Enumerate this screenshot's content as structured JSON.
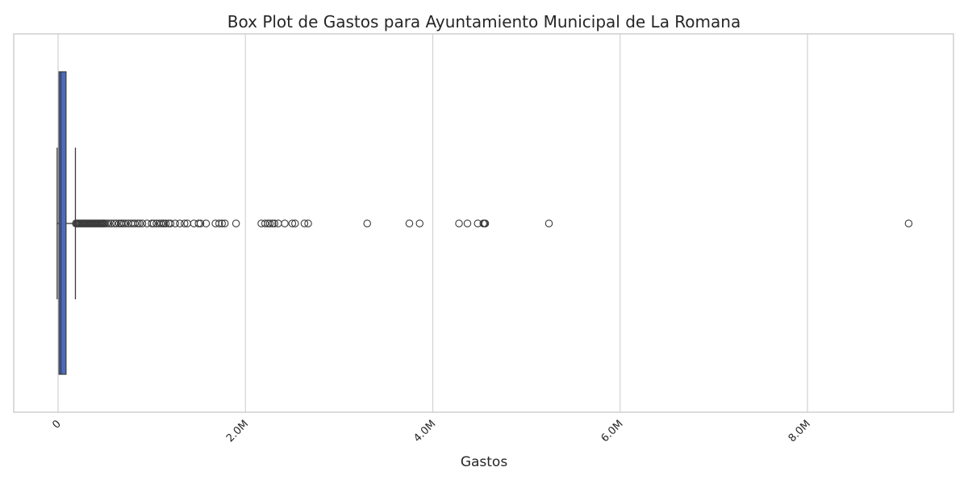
{
  "chart_data": {
    "type": "boxplot",
    "orientation": "horizontal",
    "title": "Box Plot de Gastos para Ayuntamiento Municipal de La Romana",
    "xlabel": "Gastos",
    "ylabel": "",
    "xlim": [
      -480000,
      9500000
    ],
    "xticks": [
      {
        "value": 0,
        "label": "0"
      },
      {
        "value": 2000000,
        "label": "2.0M"
      },
      {
        "value": 4000000,
        "label": "4.0M"
      },
      {
        "value": 6000000,
        "label": "6.0M"
      },
      {
        "value": 8000000,
        "label": "8.0M"
      }
    ],
    "tick_rotation_deg": -45,
    "grid": {
      "x": true,
      "y": false
    },
    "box": {
      "whisker_low": -10000,
      "q1": 10000,
      "median": 30000,
      "q3": 85000,
      "whisker_high": 185000
    },
    "outliers": [
      190000,
      200000,
      210000,
      220000,
      230000,
      240000,
      250000,
      260000,
      270000,
      280000,
      290000,
      300000,
      310000,
      320000,
      330000,
      340000,
      350000,
      360000,
      370000,
      380000,
      390000,
      400000,
      410000,
      420000,
      430000,
      440000,
      450000,
      460000,
      470000,
      480000,
      490000,
      500000,
      520000,
      540000,
      570000,
      600000,
      620000,
      650000,
      670000,
      680000,
      700000,
      720000,
      750000,
      780000,
      800000,
      820000,
      850000,
      870000,
      900000,
      950000,
      1000000,
      1020000,
      1050000,
      1080000,
      1100000,
      1120000,
      1130000,
      1150000,
      1180000,
      1200000,
      1250000,
      1300000,
      1350000,
      1380000,
      1450000,
      1500000,
      1520000,
      1580000,
      1680000,
      1720000,
      1750000,
      1780000,
      1900000,
      2170000,
      2210000,
      2240000,
      2260000,
      2290000,
      2310000,
      2350000,
      2420000,
      2500000,
      2530000,
      2630000,
      2670000,
      3300000,
      3750000,
      3860000,
      4280000,
      4370000,
      4480000,
      4540000,
      4550000,
      4560000,
      5240000,
      9080000
    ],
    "colors": {
      "box_fill": "#4c6bbf",
      "line": "#3a3a3a",
      "grid": "#d3d3d3",
      "frame": "#cccccc"
    }
  }
}
